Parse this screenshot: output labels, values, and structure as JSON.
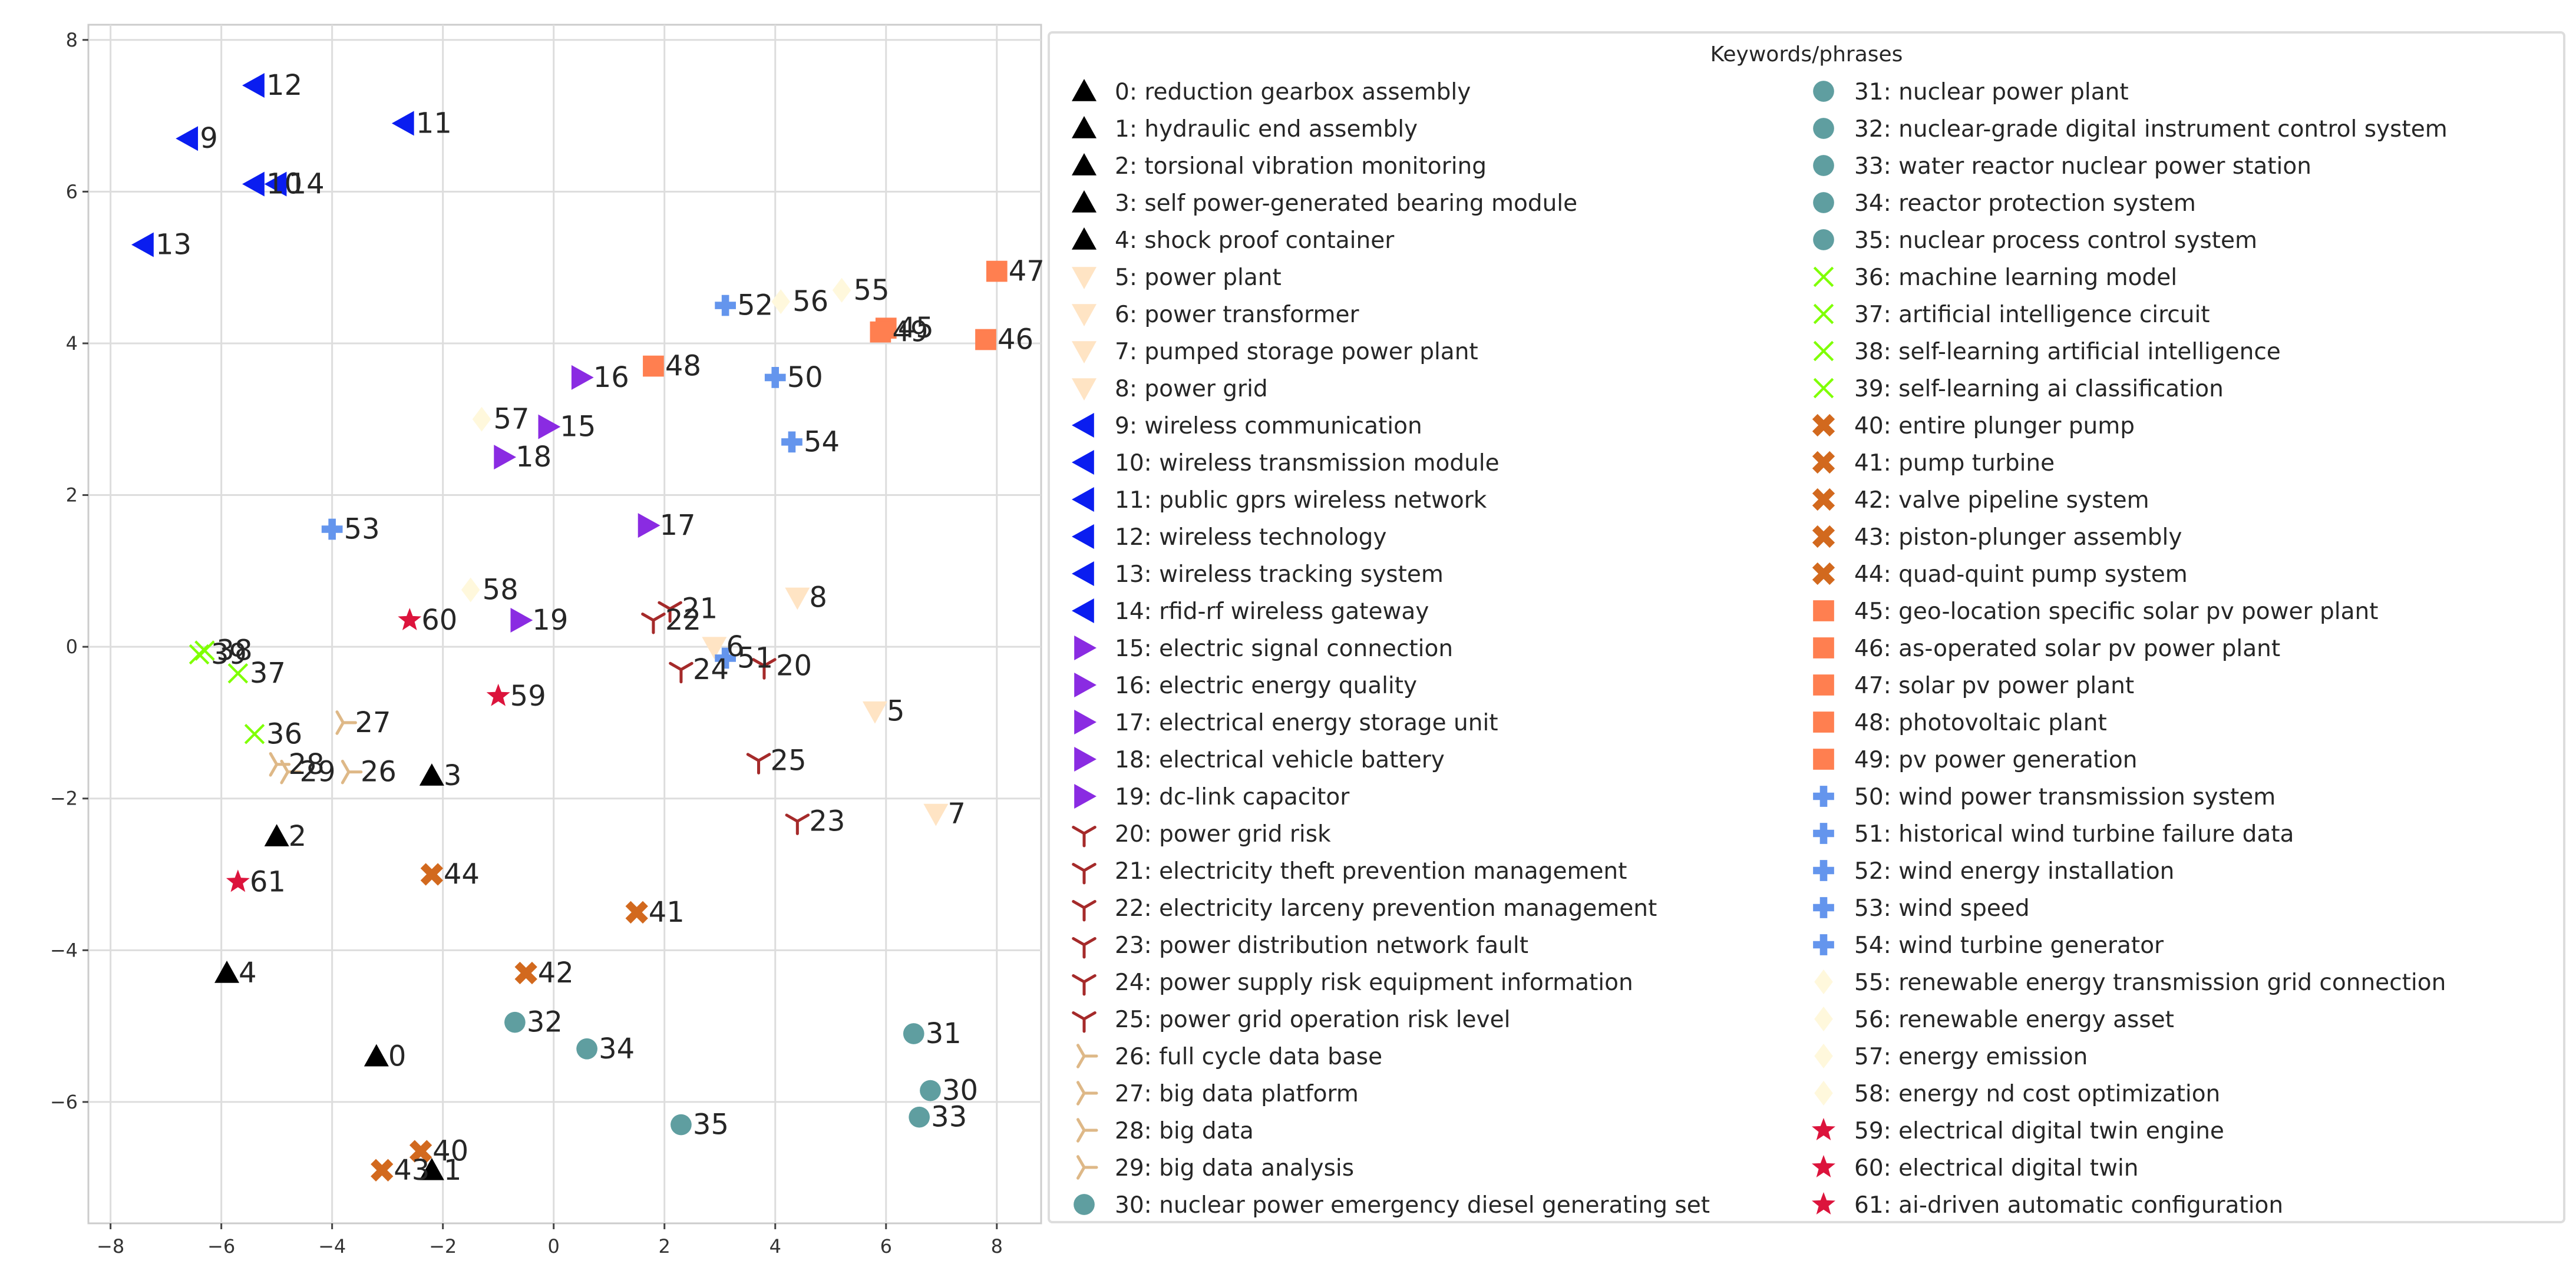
{
  "chart_data": {
    "type": "scatter",
    "title": "",
    "xlabel": "",
    "ylabel": "",
    "xlim": [
      -8.4,
      8.8
    ],
    "ylim": [
      -7.6,
      8.2
    ],
    "grid": true,
    "x_ticks": [
      -8,
      -6,
      -4,
      -2,
      0,
      2,
      4,
      6,
      8
    ],
    "y_ticks": [
      -6,
      -4,
      -2,
      0,
      2,
      4,
      6,
      8
    ],
    "x_tick_labels": [
      "−8",
      "−6",
      "−4",
      "−2",
      "0",
      "2",
      "4",
      "6",
      "8"
    ],
    "y_tick_labels": [
      "−6",
      "−4",
      "−2",
      "0",
      "2",
      "4",
      "6",
      "8"
    ],
    "legend_title": "Keywords/phrases",
    "legend_position": "right",
    "groups": [
      {
        "marker": "triangle-up",
        "color": "#000000"
      },
      {
        "marker": "triangle-down",
        "color": "#ffe4c4"
      },
      {
        "marker": "triangle-left",
        "color": "#0a1df0"
      },
      {
        "marker": "triangle-right",
        "color": "#8a2be2"
      },
      {
        "marker": "tri-down",
        "color": "#a52a2a"
      },
      {
        "marker": "tri-right",
        "color": "#deb887"
      },
      {
        "marker": "circle",
        "color": "#5f9ea0"
      },
      {
        "marker": "x",
        "color": "#7fff00"
      },
      {
        "marker": "x-thick",
        "color": "#d2691e"
      },
      {
        "marker": "square",
        "color": "#ff7f50"
      },
      {
        "marker": "plus",
        "color": "#6495ed"
      },
      {
        "marker": "diamond",
        "color": "#fff8dc"
      },
      {
        "marker": "star",
        "color": "#dc143c"
      }
    ],
    "points": [
      {
        "id": "0",
        "label": "0: reduction gearbox assembly",
        "g": 0,
        "x": -3.2,
        "y": -5.4
      },
      {
        "id": "1",
        "label": "1: hydraulic end assembly",
        "g": 0,
        "x": -2.2,
        "y": -6.9
      },
      {
        "id": "2",
        "label": "2: torsional vibration monitoring",
        "g": 0,
        "x": -5.0,
        "y": -2.5
      },
      {
        "id": "3",
        "label": "3: self power-generated bearing module",
        "g": 0,
        "x": -2.2,
        "y": -1.7
      },
      {
        "id": "4",
        "label": "4: shock proof container",
        "g": 0,
        "x": -5.9,
        "y": -4.3
      },
      {
        "id": "5",
        "label": "5: power plant",
        "g": 1,
        "x": 5.8,
        "y": -0.85
      },
      {
        "id": "6",
        "label": "6: power transformer",
        "g": 1,
        "x": 2.9,
        "y": 0.0
      },
      {
        "id": "7",
        "label": "7: pumped storage power plant",
        "g": 1,
        "x": 6.9,
        "y": -2.2
      },
      {
        "id": "8",
        "label": "8: power grid",
        "g": 1,
        "x": 4.4,
        "y": 0.65
      },
      {
        "id": "9",
        "label": "9: wireless communication",
        "g": 2,
        "x": -6.6,
        "y": 6.7
      },
      {
        "id": "10",
        "label": "10: wireless transmission module",
        "g": 2,
        "x": -5.4,
        "y": 6.1
      },
      {
        "id": "11",
        "label": "11: public gprs wireless network",
        "g": 2,
        "x": -2.7,
        "y": 6.9
      },
      {
        "id": "12",
        "label": "12: wireless technology",
        "g": 2,
        "x": -5.4,
        "y": 7.4
      },
      {
        "id": "13",
        "label": "13: wireless tracking system",
        "g": 2,
        "x": -7.4,
        "y": 5.3
      },
      {
        "id": "14",
        "label": "14: rfid-rf wireless gateway",
        "g": 2,
        "x": -5.0,
        "y": 6.1
      },
      {
        "id": "15",
        "label": "15: electric signal connection",
        "g": 3,
        "x": -0.1,
        "y": 2.9
      },
      {
        "id": "16",
        "label": "16: electric energy quality",
        "g": 3,
        "x": 0.5,
        "y": 3.55
      },
      {
        "id": "17",
        "label": "17: electrical energy storage unit",
        "g": 3,
        "x": 1.7,
        "y": 1.6
      },
      {
        "id": "18",
        "label": "18: electrical vehicle battery",
        "g": 3,
        "x": -0.9,
        "y": 2.5
      },
      {
        "id": "19",
        "label": "19: dc-link capacitor",
        "g": 3,
        "x": -0.6,
        "y": 0.35
      },
      {
        "id": "20",
        "label": "20: power grid risk",
        "g": 4,
        "x": 3.8,
        "y": -0.25
      },
      {
        "id": "21",
        "label": "21: electricity theft prevention management",
        "g": 4,
        "x": 2.1,
        "y": 0.5
      },
      {
        "id": "22",
        "label": "22: electricity larceny prevention management",
        "g": 4,
        "x": 1.8,
        "y": 0.35
      },
      {
        "id": "23",
        "label": "23: power distribution network fault",
        "g": 4,
        "x": 4.4,
        "y": -2.3
      },
      {
        "id": "24",
        "label": "24: power supply risk equipment information",
        "g": 4,
        "x": 2.3,
        "y": -0.3
      },
      {
        "id": "25",
        "label": "25: power grid operation risk level",
        "g": 4,
        "x": 3.7,
        "y": -1.5
      },
      {
        "id": "26",
        "label": "26: full cycle data base",
        "g": 5,
        "x": -3.7,
        "y": -1.65
      },
      {
        "id": "27",
        "label": "27: big data platform",
        "g": 5,
        "x": -3.8,
        "y": -1.0
      },
      {
        "id": "28",
        "label": "28: big data",
        "g": 5,
        "x": -5.0,
        "y": -1.55
      },
      {
        "id": "29",
        "label": "29: big data analysis",
        "g": 5,
        "x": -4.8,
        "y": -1.65
      },
      {
        "id": "30",
        "label": "30: nuclear power emergency diesel generating set",
        "g": 6,
        "x": 6.8,
        "y": -5.85
      },
      {
        "id": "31",
        "label": "31: nuclear power plant",
        "g": 6,
        "x": 6.5,
        "y": -5.1
      },
      {
        "id": "32",
        "label": "32: nuclear-grade digital instrument control system",
        "g": 6,
        "x": -0.7,
        "y": -4.95
      },
      {
        "id": "33",
        "label": "33: water reactor nuclear power station",
        "g": 6,
        "x": 6.6,
        "y": -6.2
      },
      {
        "id": "34",
        "label": "34: reactor protection system",
        "g": 6,
        "x": 0.6,
        "y": -5.3
      },
      {
        "id": "35",
        "label": "35: nuclear process control system",
        "g": 6,
        "x": 2.3,
        "y": -6.3
      },
      {
        "id": "36",
        "label": "36: machine learning model",
        "g": 7,
        "x": -5.4,
        "y": -1.15
      },
      {
        "id": "37",
        "label": "37: artificial intelligence circuit",
        "g": 7,
        "x": -5.7,
        "y": -0.35
      },
      {
        "id": "38",
        "label": "38: self-learning artificial intelligence",
        "g": 7,
        "x": -6.3,
        "y": -0.05
      },
      {
        "id": "39",
        "label": "39: self-learning ai classification",
        "g": 7,
        "x": -6.4,
        "y": -0.1
      },
      {
        "id": "40",
        "label": "40: entire plunger pump",
        "g": 8,
        "x": -2.4,
        "y": -6.65
      },
      {
        "id": "41",
        "label": "41: pump turbine",
        "g": 8,
        "x": 1.5,
        "y": -3.5
      },
      {
        "id": "42",
        "label": "42: valve pipeline system",
        "g": 8,
        "x": -0.5,
        "y": -4.3
      },
      {
        "id": "43",
        "label": "43: piston-plunger assembly",
        "g": 8,
        "x": -3.1,
        "y": -6.9
      },
      {
        "id": "44",
        "label": "44: quad-quint pump system",
        "g": 8,
        "x": -2.2,
        "y": -3.0
      },
      {
        "id": "45",
        "label": "45: geo-location specific solar pv power plant",
        "g": 9,
        "x": 6.0,
        "y": 4.2
      },
      {
        "id": "46",
        "label": "46: as-operated solar pv power plant",
        "g": 9,
        "x": 7.8,
        "y": 4.05
      },
      {
        "id": "47",
        "label": "47: solar pv power plant",
        "g": 9,
        "x": 8.0,
        "y": 4.95
      },
      {
        "id": "48",
        "label": "48: photovoltaic plant",
        "g": 9,
        "x": 1.8,
        "y": 3.7
      },
      {
        "id": "49",
        "label": "49: pv power generation",
        "g": 9,
        "x": 5.9,
        "y": 4.15
      },
      {
        "id": "50",
        "label": "50: wind power transmission system",
        "g": 10,
        "x": 4.0,
        "y": 3.55
      },
      {
        "id": "51",
        "label": "51: historical wind turbine failure data",
        "g": 10,
        "x": 3.1,
        "y": -0.15
      },
      {
        "id": "52",
        "label": "52: wind energy installation",
        "g": 10,
        "x": 3.1,
        "y": 4.5
      },
      {
        "id": "53",
        "label": "53: wind speed",
        "g": 10,
        "x": -4.0,
        "y": 1.55
      },
      {
        "id": "54",
        "label": "54: wind turbine generator",
        "g": 10,
        "x": 4.3,
        "y": 2.7
      },
      {
        "id": "55",
        "label": "55: renewable energy transmission grid connection",
        "g": 11,
        "x": 5.2,
        "y": 4.7
      },
      {
        "id": "56",
        "label": "56: renewable energy asset",
        "g": 11,
        "x": 4.1,
        "y": 4.55
      },
      {
        "id": "57",
        "label": "57: energy emission",
        "g": 11,
        "x": -1.3,
        "y": 3.0
      },
      {
        "id": "58",
        "label": "58: energy nd cost optimization",
        "g": 11,
        "x": -1.5,
        "y": 0.75
      },
      {
        "id": "59",
        "label": "59: electrical digital twin engine",
        "g": 12,
        "x": -1.0,
        "y": -0.65
      },
      {
        "id": "60",
        "label": "60: electrical digital twin",
        "g": 12,
        "x": -2.6,
        "y": 0.35
      },
      {
        "id": "61",
        "label": "61: ai-driven automatic configuration",
        "g": 12,
        "x": -5.7,
        "y": -3.1
      }
    ]
  }
}
